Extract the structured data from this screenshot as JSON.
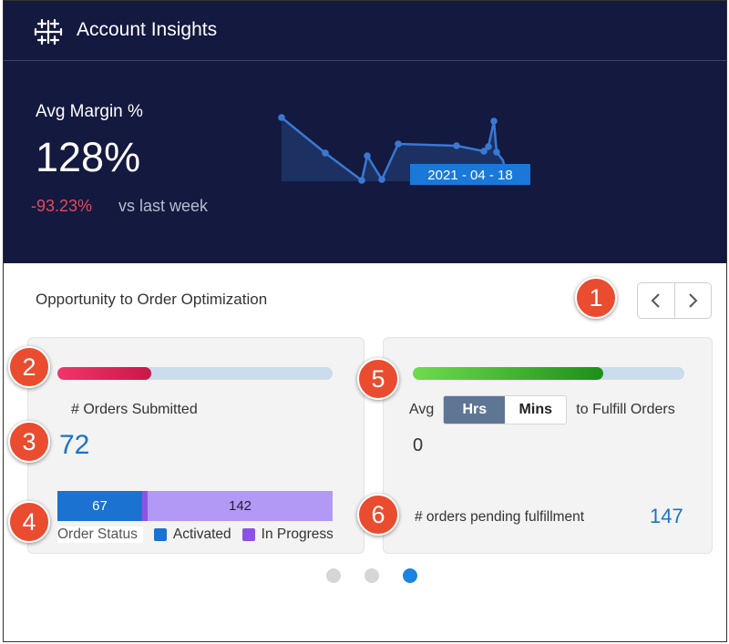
{
  "app": {
    "title": "Account Insights",
    "logo_icon": "tableau-plus-icon"
  },
  "metric": {
    "label": "Avg Margin %",
    "value": "128%",
    "delta": "-93.23%",
    "delta_color": "#e34a5b",
    "comparison": "vs last week"
  },
  "sparkline": {
    "tooltip_date": "2021 - 04 - 18",
    "line_color": "#3a78d4",
    "tooltip_color": "#1a78d8"
  },
  "section": {
    "title": "Opportunity to Order Optimization"
  },
  "nav": {
    "prev_icon": "chevron-left-icon",
    "next_icon": "chevron-right-icon"
  },
  "orders_card": {
    "progress_fraction": 0.34,
    "label": "# Orders Submitted",
    "value": "72",
    "status_bar": [
      {
        "label": "67",
        "color": "#1b72d1"
      },
      {
        "label": "142",
        "color": "#b399f6"
      }
    ],
    "legend": {
      "title": "Order Status",
      "items": [
        {
          "label": "Activated",
          "color": "#1b72d1"
        },
        {
          "label": "In Progress",
          "color": "#8c52e6"
        }
      ]
    }
  },
  "fulfill_card": {
    "progress_fraction": 0.7,
    "prefix": "Avg",
    "toggle": [
      {
        "label": "Hrs",
        "selected": true
      },
      {
        "label": "Mins",
        "selected": false
      }
    ],
    "suffix": "to Fulfill Orders",
    "value": "0",
    "pending_label": "# orders pending fulfillment",
    "pending_value": "147"
  },
  "pager": {
    "count": 3,
    "active_index": 2
  },
  "callouts": [
    "1",
    "2",
    "3",
    "4",
    "5",
    "6"
  ]
}
